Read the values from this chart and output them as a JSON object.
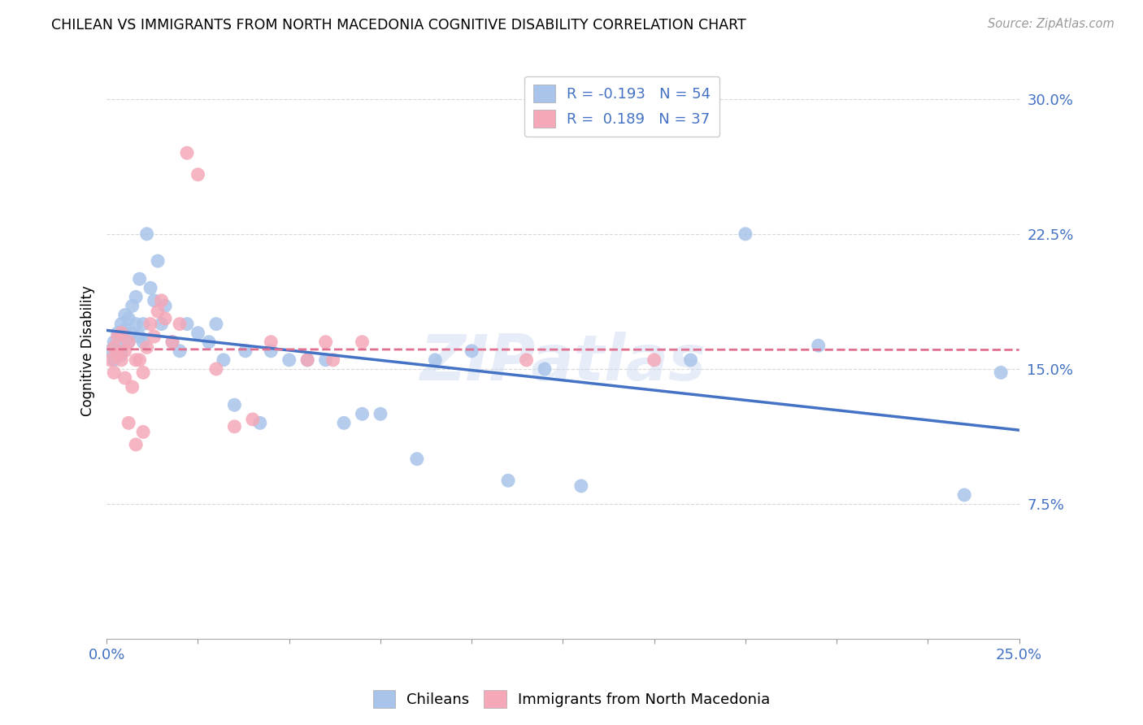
{
  "title": "CHILEAN VS IMMIGRANTS FROM NORTH MACEDONIA COGNITIVE DISABILITY CORRELATION CHART",
  "source": "Source: ZipAtlas.com",
  "ylabel": "Cognitive Disability",
  "ytick_labels": [
    "7.5%",
    "15.0%",
    "22.5%",
    "30.0%"
  ],
  "ytick_values": [
    0.075,
    0.15,
    0.225,
    0.3
  ],
  "xlim": [
    0.0,
    0.25
  ],
  "ylim": [
    0.0,
    0.32
  ],
  "watermark": "ZIPatlas",
  "legend_blue_R": "R = -0.193",
  "legend_blue_N": "N = 54",
  "legend_pink_R": "R =  0.189",
  "legend_pink_N": "N = 37",
  "blue_color": "#a8c4ea",
  "pink_color": "#f4a8b8",
  "line_blue": "#4472c4",
  "line_pink": "#e07090",
  "legend_text_color": "#4472c4",
  "blue_scatter_x": [
    0.001,
    0.002,
    0.002,
    0.003,
    0.003,
    0.004,
    0.004,
    0.004,
    0.005,
    0.005,
    0.006,
    0.006,
    0.007,
    0.007,
    0.008,
    0.008,
    0.009,
    0.009,
    0.01,
    0.01,
    0.011,
    0.012,
    0.013,
    0.014,
    0.015,
    0.016,
    0.018,
    0.02,
    0.022,
    0.025,
    0.028,
    0.03,
    0.032,
    0.035,
    0.038,
    0.042,
    0.045,
    0.05,
    0.055,
    0.06,
    0.065,
    0.07,
    0.075,
    0.085,
    0.09,
    0.1,
    0.11,
    0.12,
    0.13,
    0.16,
    0.175,
    0.195,
    0.235,
    0.245
  ],
  "blue_scatter_y": [
    0.16,
    0.165,
    0.155,
    0.17,
    0.162,
    0.175,
    0.168,
    0.158,
    0.172,
    0.18,
    0.165,
    0.178,
    0.17,
    0.185,
    0.175,
    0.19,
    0.168,
    0.2,
    0.175,
    0.165,
    0.225,
    0.195,
    0.188,
    0.21,
    0.175,
    0.185,
    0.165,
    0.16,
    0.175,
    0.17,
    0.165,
    0.175,
    0.155,
    0.13,
    0.16,
    0.12,
    0.16,
    0.155,
    0.155,
    0.155,
    0.12,
    0.125,
    0.125,
    0.1,
    0.155,
    0.16,
    0.088,
    0.15,
    0.085,
    0.155,
    0.225,
    0.163,
    0.08,
    0.148
  ],
  "pink_scatter_x": [
    0.001,
    0.002,
    0.002,
    0.003,
    0.003,
    0.004,
    0.004,
    0.005,
    0.005,
    0.006,
    0.006,
    0.007,
    0.008,
    0.008,
    0.009,
    0.01,
    0.01,
    0.011,
    0.012,
    0.013,
    0.014,
    0.015,
    0.016,
    0.018,
    0.02,
    0.022,
    0.025,
    0.03,
    0.035,
    0.04,
    0.045,
    0.055,
    0.06,
    0.062,
    0.07,
    0.115,
    0.15
  ],
  "pink_scatter_y": [
    0.155,
    0.162,
    0.148,
    0.158,
    0.168,
    0.155,
    0.17,
    0.16,
    0.145,
    0.165,
    0.12,
    0.14,
    0.155,
    0.108,
    0.155,
    0.148,
    0.115,
    0.162,
    0.175,
    0.168,
    0.182,
    0.188,
    0.178,
    0.165,
    0.175,
    0.27,
    0.258,
    0.15,
    0.118,
    0.122,
    0.165,
    0.155,
    0.165,
    0.155,
    0.165,
    0.155,
    0.155
  ],
  "background_color": "#ffffff",
  "grid_color": "#d8d8d8",
  "xtick_positions": [
    0.0,
    0.025,
    0.05,
    0.075,
    0.1,
    0.125,
    0.15,
    0.175,
    0.2,
    0.225,
    0.25
  ]
}
